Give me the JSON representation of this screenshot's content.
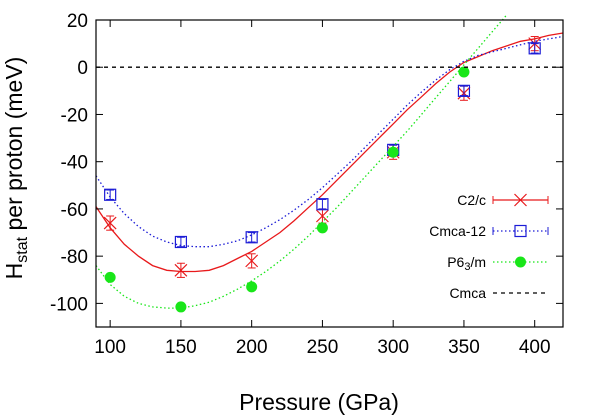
{
  "chart_data": {
    "type": "line",
    "xlabel": "Pressure (GPa)",
    "ylabel_main": "H",
    "ylabel_sub": "stat",
    "ylabel_rest": " per proton (meV)",
    "xlim": [
      90,
      420
    ],
    "ylim": [
      -110,
      20
    ],
    "xticks": [
      100,
      150,
      200,
      250,
      300,
      350,
      400
    ],
    "yticks": [
      20,
      0,
      -20,
      -40,
      -60,
      -80,
      -100
    ],
    "grid": false,
    "legend_position": "lower right",
    "series": [
      {
        "name": "C2/c",
        "color": "#e8191b",
        "marker": "x",
        "line": "solid",
        "points": [
          {
            "x": 100,
            "y": -66,
            "err": 3
          },
          {
            "x": 150,
            "y": -86,
            "err": 3
          },
          {
            "x": 200,
            "y": -82,
            "err": 3
          },
          {
            "x": 250,
            "y": -63,
            "err": 3
          },
          {
            "x": 300,
            "y": -36,
            "err": 3
          },
          {
            "x": 350,
            "y": -11,
            "err": 3
          },
          {
            "x": 400,
            "y": 10,
            "err": 3
          }
        ],
        "fit": [
          [
            90,
            -59
          ],
          [
            100,
            -68
          ],
          [
            110,
            -75
          ],
          [
            120,
            -80
          ],
          [
            130,
            -84
          ],
          [
            140,
            -86
          ],
          [
            150,
            -86.5
          ],
          [
            160,
            -86.5
          ],
          [
            170,
            -86
          ],
          [
            180,
            -84
          ],
          [
            190,
            -81
          ],
          [
            200,
            -78
          ],
          [
            210,
            -74
          ],
          [
            220,
            -70
          ],
          [
            230,
            -65
          ],
          [
            240,
            -59.5
          ],
          [
            250,
            -54
          ],
          [
            260,
            -48
          ],
          [
            270,
            -42
          ],
          [
            280,
            -36
          ],
          [
            290,
            -30
          ],
          [
            300,
            -24
          ],
          [
            310,
            -18
          ],
          [
            320,
            -12.5
          ],
          [
            330,
            -7
          ],
          [
            340,
            -2
          ],
          [
            350,
            2
          ],
          [
            360,
            4.5
          ],
          [
            370,
            7
          ],
          [
            380,
            9
          ],
          [
            390,
            11
          ],
          [
            400,
            12
          ],
          [
            410,
            13.5
          ],
          [
            420,
            14.5
          ]
        ]
      },
      {
        "name": "Cmca-12",
        "color": "#1c1cd6",
        "marker": "square",
        "line": "dotted",
        "points": [
          {
            "x": 100,
            "y": -54,
            "err": 2
          },
          {
            "x": 150,
            "y": -74,
            "err": 2
          },
          {
            "x": 200,
            "y": -72,
            "err": 2
          },
          {
            "x": 250,
            "y": -58,
            "err": 2
          },
          {
            "x": 300,
            "y": -35,
            "err": 2
          },
          {
            "x": 350,
            "y": -10,
            "err": 2
          },
          {
            "x": 400,
            "y": 8,
            "err": 2
          }
        ],
        "fit": [
          [
            90,
            -46
          ],
          [
            100,
            -55
          ],
          [
            110,
            -62
          ],
          [
            120,
            -67.5
          ],
          [
            130,
            -71.5
          ],
          [
            140,
            -74
          ],
          [
            150,
            -75.5
          ],
          [
            160,
            -76
          ],
          [
            170,
            -76
          ],
          [
            180,
            -75
          ],
          [
            190,
            -73.5
          ],
          [
            200,
            -71
          ],
          [
            210,
            -68
          ],
          [
            220,
            -64.5
          ],
          [
            230,
            -60.5
          ],
          [
            240,
            -56
          ],
          [
            250,
            -51
          ],
          [
            260,
            -45.5
          ],
          [
            270,
            -40
          ],
          [
            280,
            -34
          ],
          [
            290,
            -28
          ],
          [
            300,
            -22
          ],
          [
            310,
            -16
          ],
          [
            320,
            -10.5
          ],
          [
            330,
            -5.5
          ],
          [
            340,
            -1
          ],
          [
            350,
            2.5
          ],
          [
            360,
            5
          ],
          [
            370,
            6.5
          ],
          [
            380,
            8
          ],
          [
            390,
            9.5
          ],
          [
            400,
            11
          ],
          [
            410,
            12
          ],
          [
            420,
            13
          ]
        ]
      },
      {
        "name": "P6",
        "name_sub": "3",
        "name_rest": "/m",
        "color": "#19e619",
        "marker": "circle",
        "line": "dotted",
        "points": [
          {
            "x": 100,
            "y": -89,
            "err": 0
          },
          {
            "x": 150,
            "y": -101.5,
            "err": 0
          },
          {
            "x": 200,
            "y": -93,
            "err": 0
          },
          {
            "x": 250,
            "y": -68,
            "err": 0
          },
          {
            "x": 300,
            "y": -36,
            "err": 0
          },
          {
            "x": 350,
            "y": -2,
            "err": 0
          }
        ],
        "fit": [
          [
            90,
            -84
          ],
          [
            100,
            -92
          ],
          [
            110,
            -97
          ],
          [
            120,
            -100
          ],
          [
            130,
            -101.5
          ],
          [
            140,
            -102
          ],
          [
            150,
            -102
          ],
          [
            160,
            -101
          ],
          [
            170,
            -99.5
          ],
          [
            180,
            -97
          ],
          [
            190,
            -94
          ],
          [
            200,
            -90.5
          ],
          [
            210,
            -86.5
          ],
          [
            220,
            -82
          ],
          [
            230,
            -77
          ],
          [
            240,
            -71.5
          ],
          [
            250,
            -65.5
          ],
          [
            260,
            -59.5
          ],
          [
            270,
            -53
          ],
          [
            280,
            -46.5
          ],
          [
            290,
            -40
          ],
          [
            300,
            -33.5
          ],
          [
            310,
            -27
          ],
          [
            320,
            -20
          ],
          [
            330,
            -13
          ],
          [
            340,
            -6
          ],
          [
            350,
            1
          ],
          [
            360,
            8
          ],
          [
            370,
            15
          ],
          [
            380,
            22
          ]
        ]
      },
      {
        "name": "Cmca",
        "color": "#000000",
        "marker": "none",
        "line": "dashed",
        "points": [],
        "fit": [
          [
            90,
            0
          ],
          [
            420,
            0
          ]
        ]
      }
    ]
  }
}
